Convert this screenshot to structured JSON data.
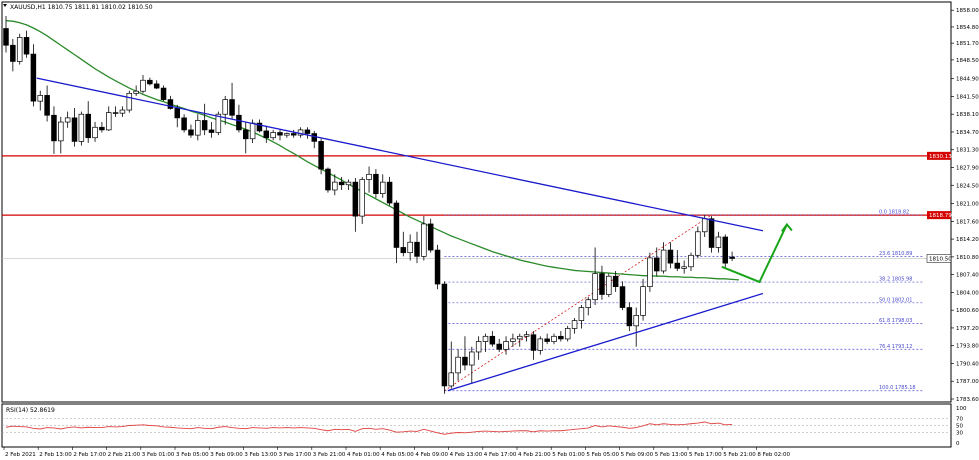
{
  "header": {
    "symbol_line": "XAUUSD,H1  1810.75 1811.81 1810.02 1810.50"
  },
  "rsi_header": {
    "label": "RSI(14) 52.8619"
  },
  "colors": {
    "bull": "#ffffff",
    "bear": "#000000",
    "ma": "#2b8a2b",
    "trend_blue": "#1a1acd",
    "resistance_red": "#d40000",
    "fib_blue": "#4b4bd0",
    "rsi_line": "#e04040",
    "arrow_green": "#19a519"
  },
  "chart_data": {
    "type": "candlestick",
    "title": "XAUUSD,H1",
    "ylim": [
      1783.6,
      1859.0
    ],
    "y_ticks": [
      "1858.00",
      "1854.80",
      "1851.70",
      "1848.50",
      "1844.90",
      "1841.50",
      "1838.10",
      "1834.70",
      "1831.30",
      "1827.90",
      "1824.50",
      "1821.00",
      "1817.60",
      "1814.20",
      "1810.80",
      "1807.40",
      "1804.00",
      "1800.60",
      "1797.20",
      "1793.80",
      "1790.40",
      "1787.00",
      "1783.60"
    ],
    "x_ticks": [
      "2 Feb 2021",
      "2 Feb 13:00",
      "2 Feb 17:00",
      "2 Feb 21:00",
      "3 Feb 01:00",
      "3 Feb 05:00",
      "3 Feb 09:00",
      "3 Feb 13:00",
      "3 Feb 17:00",
      "3 Feb 21:00",
      "4 Feb 01:00",
      "4 Feb 05:00",
      "4 Feb 09:00",
      "4 Feb 13:00",
      "4 Feb 17:00",
      "4 Feb 21:00",
      "5 Feb 01:00",
      "5 Feb 05:00",
      "5 Feb 09:00",
      "5 Feb 13:00",
      "5 Feb 17:00",
      "5 Feb 21:00",
      "8 Feb 02:00"
    ],
    "candles": [
      [
        1854.5,
        1856.9,
        1849.9,
        1851.3
      ],
      [
        1851.3,
        1852.5,
        1846.3,
        1848.2
      ],
      [
        1848.2,
        1853.5,
        1847.6,
        1852.8
      ],
      [
        1852.8,
        1854.1,
        1848.9,
        1849.6
      ],
      [
        1849.6,
        1851.5,
        1839.6,
        1840.6
      ],
      [
        1840.6,
        1842.6,
        1838.8,
        1841.7
      ],
      [
        1841.7,
        1843.6,
        1836.7,
        1837.9
      ],
      [
        1837.9,
        1839.6,
        1830.5,
        1833.0
      ],
      [
        1833.0,
        1837.6,
        1830.6,
        1836.6
      ],
      [
        1836.6,
        1838.6,
        1835.5,
        1837.4
      ],
      [
        1837.4,
        1839.3,
        1831.9,
        1832.9
      ],
      [
        1832.9,
        1838.6,
        1832.1,
        1838.1
      ],
      [
        1838.1,
        1840.6,
        1832.6,
        1833.6
      ],
      [
        1833.6,
        1836.6,
        1832.8,
        1835.6
      ],
      [
        1835.6,
        1836.6,
        1834.6,
        1835.1
      ],
      [
        1835.1,
        1839.6,
        1834.9,
        1838.4
      ],
      [
        1838.4,
        1839.6,
        1837.6,
        1838.3
      ],
      [
        1838.3,
        1839.6,
        1837.6,
        1838.9
      ],
      [
        1838.9,
        1842.6,
        1838.4,
        1842.1
      ],
      [
        1842.1,
        1843.6,
        1841.6,
        1842.5
      ],
      [
        1842.5,
        1845.6,
        1842.1,
        1844.6
      ],
      [
        1844.6,
        1845.1,
        1843.6,
        1843.9
      ],
      [
        1843.9,
        1844.6,
        1842.9,
        1843.1
      ],
      [
        1843.1,
        1843.6,
        1840.6,
        1840.9
      ],
      [
        1840.9,
        1841.6,
        1839.0,
        1839.2
      ],
      [
        1839.2,
        1839.9,
        1835.6,
        1837.4
      ],
      [
        1837.4,
        1838.1,
        1834.6,
        1835.1
      ],
      [
        1835.1,
        1836.1,
        1833.6,
        1834.1
      ],
      [
        1834.1,
        1838.1,
        1833.1,
        1836.9
      ],
      [
        1836.9,
        1840.1,
        1834.1,
        1835.1
      ],
      [
        1835.1,
        1836.6,
        1833.6,
        1834.6
      ],
      [
        1834.6,
        1838.6,
        1834.1,
        1838.1
      ],
      [
        1838.1,
        1841.6,
        1836.1,
        1840.9
      ],
      [
        1840.9,
        1844.1,
        1837.1,
        1837.9
      ],
      [
        1837.9,
        1839.9,
        1834.6,
        1835.1
      ],
      [
        1835.1,
        1836.6,
        1830.6,
        1833.4
      ],
      [
        1833.4,
        1837.1,
        1832.6,
        1836.4
      ],
      [
        1836.4,
        1837.1,
        1834.6,
        1834.9
      ],
      [
        1834.9,
        1835.9,
        1832.6,
        1833.6
      ],
      [
        1833.6,
        1835.1,
        1833.1,
        1834.6
      ],
      [
        1834.6,
        1835.1,
        1833.1,
        1834.1
      ],
      [
        1834.1,
        1834.6,
        1833.6,
        1834.4
      ],
      [
        1834.4,
        1835.1,
        1833.6,
        1834.1
      ],
      [
        1834.1,
        1835.6,
        1833.6,
        1835.1
      ],
      [
        1835.1,
        1835.6,
        1833.4,
        1834.4
      ],
      [
        1834.4,
        1834.9,
        1831.6,
        1832.9
      ],
      [
        1832.9,
        1833.4,
        1826.6,
        1827.6
      ],
      [
        1827.6,
        1827.9,
        1823.1,
        1823.6
      ],
      [
        1823.6,
        1826.6,
        1822.6,
        1825.1
      ],
      [
        1825.1,
        1826.1,
        1823.6,
        1824.6
      ],
      [
        1824.6,
        1825.6,
        1823.6,
        1825.1
      ],
      [
        1825.1,
        1825.9,
        1815.6,
        1818.6
      ],
      [
        1818.6,
        1826.1,
        1817.1,
        1825.6
      ],
      [
        1825.6,
        1828.1,
        1823.1,
        1826.6
      ],
      [
        1826.6,
        1827.6,
        1822.1,
        1822.9
      ],
      [
        1822.9,
        1826.6,
        1822.1,
        1825.1
      ],
      [
        1825.1,
        1826.1,
        1820.6,
        1821.1
      ],
      [
        1821.1,
        1821.6,
        1809.6,
        1812.6
      ],
      [
        1812.6,
        1815.6,
        1810.9,
        1811.6
      ],
      [
        1811.6,
        1815.1,
        1810.1,
        1813.6
      ],
      [
        1813.6,
        1815.6,
        1809.6,
        1810.9
      ],
      [
        1810.9,
        1818.6,
        1810.1,
        1817.1
      ],
      [
        1817.1,
        1818.1,
        1811.6,
        1812.1
      ],
      [
        1812.1,
        1813.1,
        1804.6,
        1805.6
      ],
      [
        1805.6,
        1806.1,
        1784.6,
        1786.1
      ],
      [
        1786.1,
        1794.6,
        1785.6,
        1788.6
      ],
      [
        1788.6,
        1793.1,
        1787.1,
        1791.6
      ],
      [
        1791.6,
        1795.6,
        1789.1,
        1790.1
      ],
      [
        1790.1,
        1793.6,
        1786.6,
        1792.6
      ],
      [
        1792.6,
        1795.6,
        1791.1,
        1794.6
      ],
      [
        1794.6,
        1796.1,
        1792.6,
        1795.6
      ],
      [
        1795.6,
        1796.6,
        1793.6,
        1794.1
      ],
      [
        1794.1,
        1795.1,
        1792.6,
        1793.1
      ],
      [
        1793.1,
        1795.6,
        1792.1,
        1794.6
      ],
      [
        1794.6,
        1796.1,
        1793.6,
        1795.1
      ],
      [
        1795.1,
        1796.1,
        1793.6,
        1795.6
      ],
      [
        1795.6,
        1796.6,
        1794.6,
        1795.9
      ],
      [
        1795.9,
        1796.6,
        1791.1,
        1792.9
      ],
      [
        1792.9,
        1795.6,
        1792.1,
        1795.1
      ],
      [
        1795.1,
        1796.1,
        1794.1,
        1794.6
      ],
      [
        1794.6,
        1796.1,
        1794.1,
        1795.6
      ],
      [
        1795.6,
        1796.6,
        1794.6,
        1795.1
      ],
      [
        1795.1,
        1797.6,
        1794.6,
        1797.1
      ],
      [
        1797.1,
        1799.1,
        1796.1,
        1798.6
      ],
      [
        1798.6,
        1801.6,
        1797.1,
        1801.1
      ],
      [
        1801.1,
        1803.1,
        1799.6,
        1802.6
      ],
      [
        1802.6,
        1812.6,
        1801.6,
        1807.6
      ],
      [
        1807.6,
        1809.1,
        1802.6,
        1803.6
      ],
      [
        1803.6,
        1807.6,
        1803.1,
        1807.1
      ],
      [
        1807.1,
        1808.1,
        1804.1,
        1805.1
      ],
      [
        1805.1,
        1806.1,
        1800.6,
        1801.1
      ],
      [
        1801.1,
        1802.1,
        1796.6,
        1797.6
      ],
      [
        1797.6,
        1801.1,
        1793.6,
        1799.6
      ],
      [
        1799.6,
        1806.6,
        1798.6,
        1805.1
      ],
      [
        1805.1,
        1811.6,
        1804.1,
        1810.6
      ],
      [
        1810.6,
        1812.6,
        1807.1,
        1808.1
      ],
      [
        1808.1,
        1813.6,
        1807.6,
        1812.1
      ],
      [
        1812.1,
        1813.6,
        1808.6,
        1809.6
      ],
      [
        1809.6,
        1812.1,
        1808.1,
        1808.6
      ],
      [
        1808.6,
        1810.1,
        1807.6,
        1808.9
      ],
      [
        1808.9,
        1811.6,
        1808.1,
        1811.1
      ],
      [
        1811.1,
        1816.6,
        1810.6,
        1815.6
      ],
      [
        1815.6,
        1818.8,
        1814.6,
        1818.1
      ],
      [
        1818.1,
        1818.6,
        1811.6,
        1812.6
      ],
      [
        1812.6,
        1815.6,
        1811.6,
        1814.6
      ],
      [
        1814.6,
        1815.1,
        1808.6,
        1809.6
      ],
      [
        1810.75,
        1811.81,
        1810.02,
        1810.5
      ]
    ],
    "moving_average": {
      "name": "MA",
      "values": [
        1856.0,
        1855.9,
        1855.6,
        1855.2,
        1854.6,
        1853.9,
        1853.1,
        1852.2,
        1851.3,
        1850.4,
        1849.5,
        1848.6,
        1847.7,
        1846.8,
        1846.0,
        1845.2,
        1844.5,
        1843.8,
        1843.1,
        1842.5,
        1841.9,
        1841.4,
        1840.9,
        1840.5,
        1840.0,
        1839.6,
        1839.2,
        1838.7,
        1838.3,
        1837.9,
        1837.4,
        1837.0,
        1836.6,
        1836.1,
        1835.7,
        1835.2,
        1834.7,
        1834.1,
        1833.5,
        1832.8,
        1832.1,
        1831.3,
        1830.6,
        1829.8,
        1829.0,
        1828.3,
        1827.6,
        1826.9,
        1826.2,
        1825.5,
        1824.7,
        1824.0,
        1823.3,
        1822.6,
        1821.9,
        1821.2,
        1820.5,
        1819.8,
        1819.1,
        1818.4,
        1817.8,
        1817.2,
        1816.6,
        1816.0,
        1815.4,
        1814.8,
        1814.3,
        1813.8,
        1813.3,
        1812.8,
        1812.3,
        1811.8,
        1811.4,
        1811.0,
        1810.6,
        1810.2,
        1809.9,
        1809.6,
        1809.3,
        1809.0,
        1808.8,
        1808.6,
        1808.4,
        1808.2,
        1808.1,
        1808.0,
        1807.9,
        1807.8,
        1807.7,
        1807.6,
        1807.5,
        1807.4,
        1807.3,
        1807.2,
        1807.2,
        1807.1,
        1807.1,
        1807.0,
        1807.0,
        1806.9,
        1806.9,
        1806.8,
        1806.8,
        1806.7,
        1806.6,
        1806.6,
        1806.5,
        1806.4
      ]
    },
    "horizontal_levels": [
      {
        "name": "resistance-1",
        "price": 1830.13,
        "label": "1830.13"
      },
      {
        "name": "resistance-2",
        "price": 1818.79,
        "label": "1818.79"
      }
    ],
    "current_price": {
      "price": 1810.5,
      "label": "1810.50"
    },
    "fibonacci": [
      {
        "label": "0.0 1818.82",
        "price": 1818.82
      },
      {
        "label": "23.6 1810.89",
        "price": 1810.89
      },
      {
        "label": "38.2 1805.98",
        "price": 1805.98
      },
      {
        "label": "50.0 1802.01",
        "price": 1802.01
      },
      {
        "label": "61.8 1798.03",
        "price": 1798.03
      },
      {
        "label": "76.4 1793.12",
        "price": 1793.12
      },
      {
        "label": "100.0 1785.18",
        "price": 1785.18
      }
    ],
    "trendlines": [
      {
        "name": "bearish-trendline",
        "from": [
          4.5,
          1845.0
        ],
        "to": [
          110.5,
          1815.8
        ]
      },
      {
        "name": "bullish-trendline",
        "from": [
          64.5,
          1785.2
        ],
        "to": [
          110.5,
          1803.8
        ]
      }
    ],
    "rsi": {
      "name": "RSI(14)",
      "value": 52.8619,
      "levels": [
        70,
        50,
        30
      ],
      "y_ticks": [
        "100",
        "70",
        "50",
        "30",
        "0"
      ],
      "values": [
        45,
        48,
        47,
        46,
        42,
        40,
        44,
        43,
        40,
        44,
        46,
        43,
        45,
        44,
        44,
        47,
        46,
        47,
        50,
        51,
        52,
        50,
        49,
        46,
        45,
        43,
        42,
        41,
        44,
        42,
        41,
        45,
        47,
        44,
        42,
        41,
        44,
        43,
        42,
        44,
        43,
        44,
        43,
        44,
        43,
        42,
        38,
        35,
        39,
        38,
        39,
        33,
        41,
        42,
        39,
        41,
        37,
        31,
        32,
        34,
        33,
        39,
        34,
        29,
        25,
        28,
        30,
        29,
        31,
        33,
        34,
        33,
        32,
        33,
        34,
        35,
        35,
        32,
        35,
        34,
        35,
        35,
        37,
        39,
        41,
        43,
        50,
        46,
        49,
        47,
        45,
        42,
        44,
        49,
        55,
        52,
        55,
        53,
        52,
        53,
        55,
        57,
        60,
        55,
        57,
        52,
        53
      ]
    }
  },
  "annotations": {
    "arrow_line": [
      [
        104.5,
        1808.9
      ],
      [
        110.0,
        1806.0
      ],
      [
        114.0,
        1817.0
      ]
    ]
  }
}
